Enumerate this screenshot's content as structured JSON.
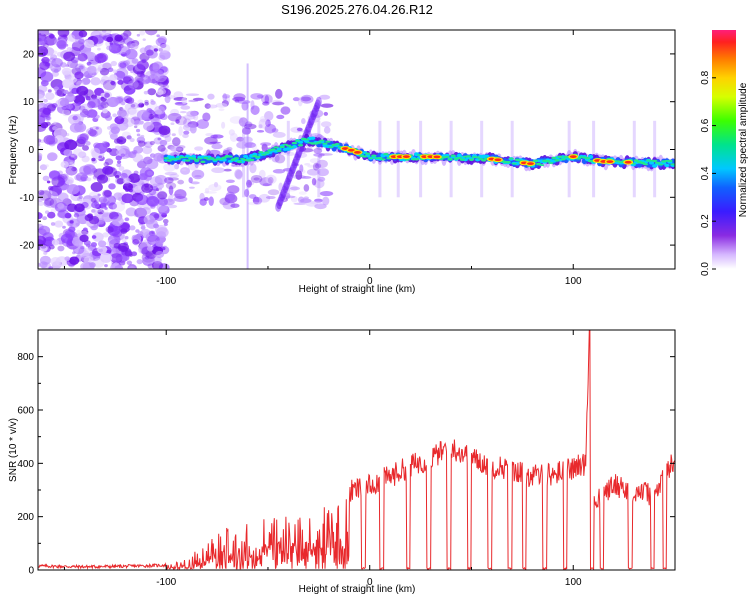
{
  "title": "S196.2025.276.04.26.R12",
  "colors": {
    "snr_line": "#e8292c",
    "axis": "#000000"
  },
  "chart_data": [
    {
      "type": "heatmap",
      "name": "spectrogram",
      "xlabel": "Height of straight line (km)",
      "ylabel": "Frequency (Hz)",
      "xlim": [
        -163,
        150
      ],
      "ylim": [
        -25,
        25
      ],
      "xticks": [
        -100,
        0,
        100
      ],
      "xtick_labels": [
        "-100",
        "0",
        "100"
      ],
      "yticks": [
        20,
        10,
        0,
        -10,
        -20
      ],
      "ytick_labels": [
        "20",
        "10",
        "0",
        "-10",
        "-20"
      ],
      "colorbar": {
        "label": "Normalized spectral amplitude",
        "range": [
          0,
          1
        ],
        "ticks": [
          0.0,
          0.2,
          0.4,
          0.6,
          0.8
        ],
        "tick_labels": [
          "0.0",
          "0.2",
          "0.4",
          "0.6",
          "0.8"
        ]
      },
      "ridge": {
        "description_values": [
          [
            -100,
            -2
          ],
          [
            -60,
            -2
          ],
          [
            -30,
            2
          ],
          [
            -10,
            0
          ],
          [
            0,
            -1.5
          ],
          [
            30,
            -1.5
          ],
          [
            60,
            -2
          ],
          [
            80,
            -3
          ],
          [
            100,
            -1.5
          ],
          [
            115,
            -2.5
          ],
          [
            150,
            -3
          ]
        ]
      }
    },
    {
      "type": "line",
      "name": "snr",
      "xlabel": "Height of straight line (km)",
      "ylabel": "SNR (10 * v/v)",
      "xlim": [
        -163,
        150
      ],
      "ylim": [
        0,
        900
      ],
      "xticks": [
        -100,
        0,
        100
      ],
      "xtick_labels": [
        "-100",
        "0",
        "100"
      ],
      "yticks": [
        0,
        200,
        400,
        600,
        800
      ],
      "ytick_labels": [
        "0",
        "200",
        "400",
        "600",
        "800"
      ],
      "series": [
        {
          "name": "SNR",
          "x": [
            -163,
            -140,
            -120,
            -100,
            -90,
            -80,
            -70,
            -60,
            -50,
            -40,
            -30,
            -20,
            -10,
            0,
            10,
            20,
            30,
            40,
            50,
            60,
            70,
            80,
            90,
            100,
            106,
            108,
            110,
            120,
            130,
            140,
            150
          ],
          "values": [
            15,
            12,
            14,
            18,
            40,
            110,
            160,
            180,
            200,
            210,
            230,
            260,
            290,
            320,
            350,
            390,
            420,
            460,
            420,
            390,
            380,
            350,
            360,
            380,
            400,
            900,
            250,
            320,
            300,
            280,
            420
          ]
        }
      ],
      "dropouts_x": [
        -3,
        6,
        19,
        29,
        39,
        49,
        59,
        69,
        76,
        86,
        96,
        109,
        114,
        128,
        139,
        145
      ]
    }
  ]
}
